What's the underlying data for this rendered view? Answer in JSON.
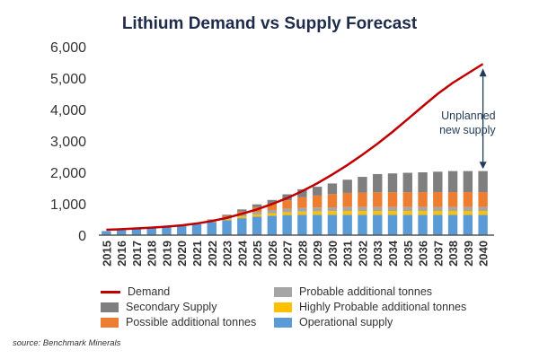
{
  "chart_data": {
    "type": "bar",
    "stacked": true,
    "title": "Lithium Demand vs Supply Forecast",
    "categories": [
      "2015",
      "2016",
      "2017",
      "2018",
      "2019",
      "2020",
      "2021",
      "2022",
      "2023",
      "2024",
      "2025",
      "2026",
      "2027",
      "2028",
      "2029",
      "2030",
      "2031",
      "2032",
      "2033",
      "2034",
      "2035",
      "2036",
      "2037",
      "2038",
      "2039",
      "2040"
    ],
    "ylim": [
      0,
      6000
    ],
    "yticks": [
      "0",
      "1,000",
      "2,000",
      "3,000",
      "4,000",
      "5,000",
      "6,000"
    ],
    "grid": false,
    "legend_placement": "bottom",
    "series": [
      {
        "name": "Operational supply",
        "color": "#5b9bd5",
        "values": [
          130,
          160,
          190,
          220,
          250,
          290,
          350,
          420,
          480,
          540,
          590,
          620,
          640,
          650,
          650,
          650,
          650,
          650,
          650,
          650,
          650,
          650,
          650,
          650,
          650,
          650
        ]
      },
      {
        "name": "Highly Probable additional tonnes",
        "color": "#ffc000",
        "values": [
          0,
          0,
          0,
          0,
          0,
          0,
          0,
          20,
          40,
          60,
          70,
          80,
          90,
          100,
          110,
          115,
          120,
          120,
          120,
          120,
          120,
          120,
          120,
          120,
          120,
          120
        ]
      },
      {
        "name": "Probable additional tonnes",
        "color": "#a5a5a5",
        "values": [
          0,
          0,
          0,
          0,
          0,
          0,
          0,
          20,
          40,
          60,
          80,
          100,
          110,
          115,
          120,
          120,
          125,
          125,
          125,
          125,
          125,
          125,
          125,
          125,
          125,
          125
        ]
      },
      {
        "name": "Possible additional tonnes",
        "color": "#ed7d31",
        "values": [
          0,
          0,
          0,
          0,
          0,
          0,
          0,
          20,
          50,
          90,
          150,
          200,
          270,
          340,
          380,
          420,
          450,
          460,
          470,
          470,
          470,
          475,
          475,
          475,
          475,
          475
        ]
      },
      {
        "name": "Secondary Supply",
        "color": "#7f7f7f",
        "values": [
          0,
          0,
          0,
          0,
          0,
          0,
          0,
          20,
          40,
          70,
          90,
          120,
          190,
          255,
          280,
          340,
          420,
          500,
          580,
          600,
          620,
          630,
          650,
          670,
          670,
          670
        ]
      }
    ],
    "line_series": {
      "name": "Demand",
      "color": "#c00000",
      "values": [
        170,
        190,
        215,
        240,
        270,
        310,
        370,
        450,
        550,
        680,
        820,
        990,
        1180,
        1400,
        1650,
        1930,
        2230,
        2560,
        2910,
        3290,
        3690,
        4100,
        4500,
        4850,
        5150,
        5450
      ]
    },
    "annotation": {
      "line1": "Unplanned",
      "line2": "new supply"
    }
  },
  "legend": [
    {
      "label": "Demand",
      "type": "line",
      "color": "#c00000"
    },
    {
      "label": "Probable additional tonnes",
      "type": "box",
      "color": "#a5a5a5"
    },
    {
      "label": "Secondary Supply",
      "type": "box",
      "color": "#7f7f7f"
    },
    {
      "label": "Highly Probable additional tonnes",
      "type": "box",
      "color": "#ffc000"
    },
    {
      "label": "Possible additional tonnes",
      "type": "box",
      "color": "#ed7d31"
    },
    {
      "label": "Operational supply",
      "type": "box",
      "color": "#5b9bd5"
    }
  ],
  "source": "source: Benchmark Minerals"
}
